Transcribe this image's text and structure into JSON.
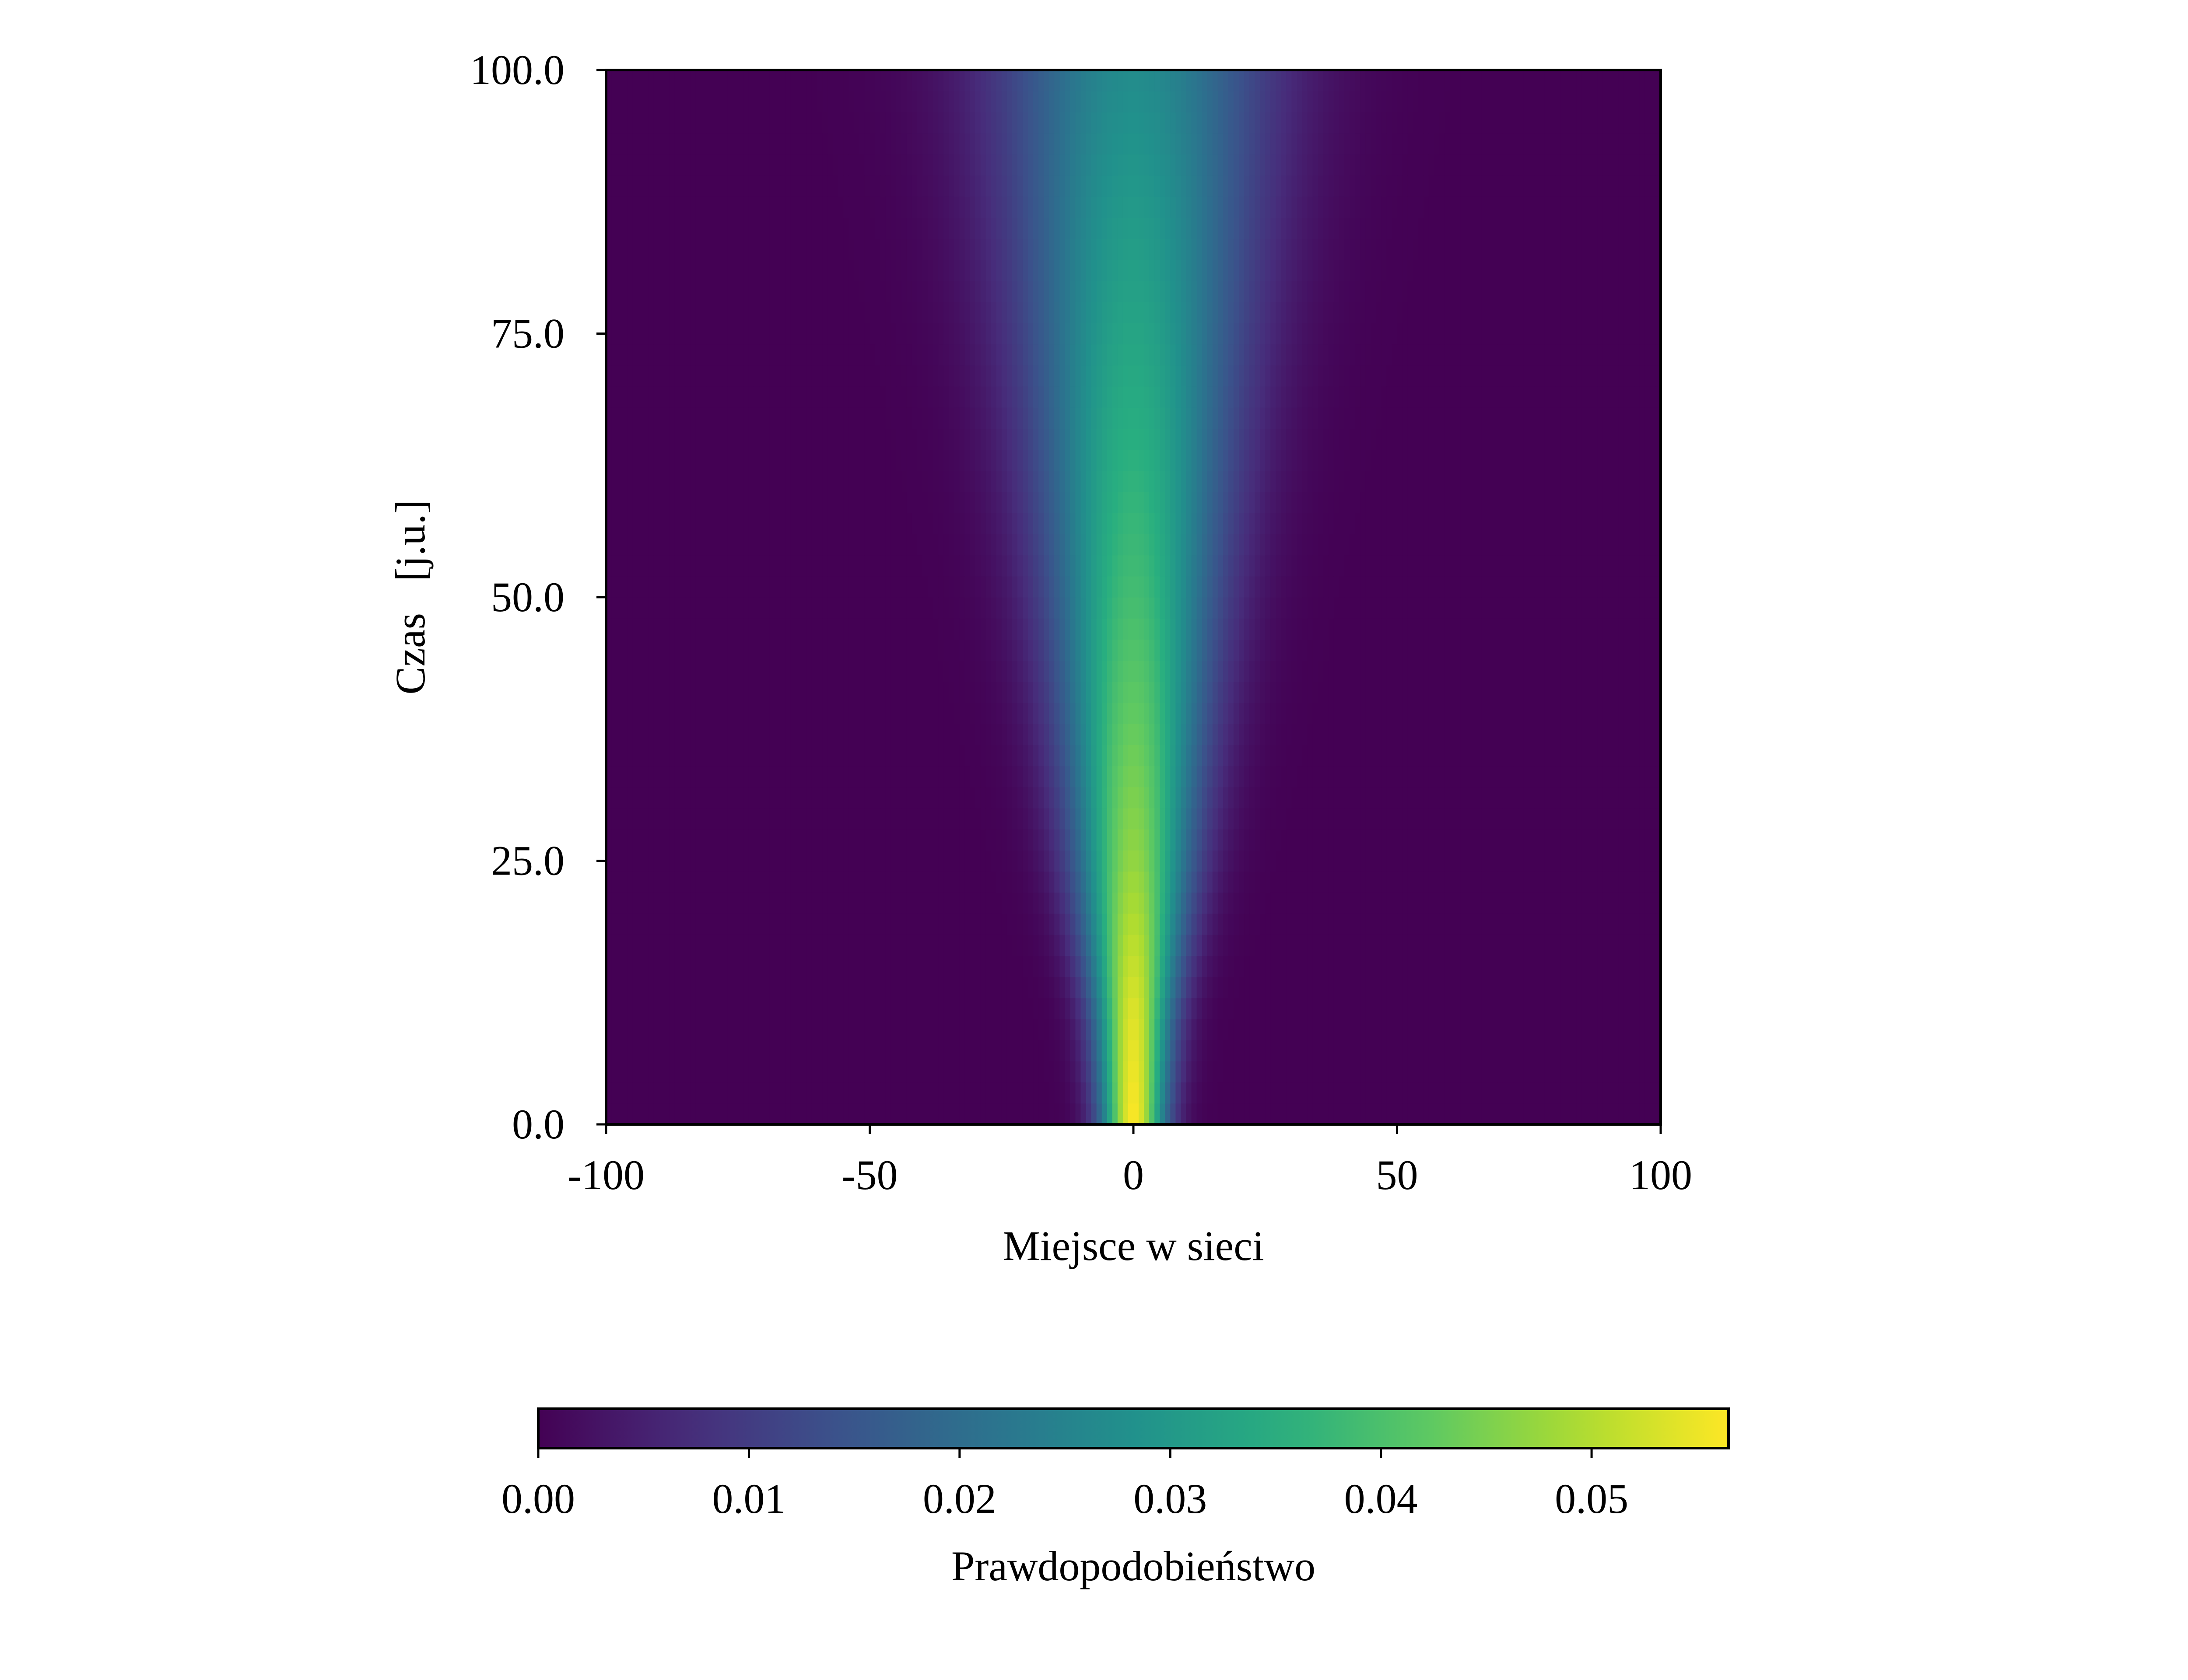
{
  "chart_data": {
    "type": "heatmap",
    "title": "",
    "xlabel": "Miejsce w sieci",
    "ylabel": "Czas   [j.u.]",
    "xlim": [
      -100,
      100
    ],
    "ylim": [
      0,
      100
    ],
    "x_ticks": [
      -100,
      -50,
      0,
      50,
      100
    ],
    "x_tick_labels": [
      "-100",
      "-50",
      "0",
      "50",
      "100"
    ],
    "y_ticks": [
      0,
      25,
      50,
      75,
      100
    ],
    "y_tick_labels": [
      "0.0",
      "25.0",
      "50.0",
      "75.0",
      "100.0"
    ],
    "colormap": "viridis",
    "colorbar": {
      "label": "Prawdopodobieństwo",
      "orientation": "horizontal",
      "placement": "bottom",
      "range": [
        0,
        0.0565
      ],
      "ticks": [
        0,
        0.01,
        0.02,
        0.03,
        0.04,
        0.05
      ],
      "tick_labels": [
        "0.00",
        "0.01",
        "0.02",
        "0.03",
        "0.04",
        "0.05"
      ]
    },
    "distribution_by_time": {
      "description": "Probability vs lattice site, centred at site 0, widening with time",
      "time": [
        0,
        10,
        25,
        50,
        75,
        100
      ],
      "peak_probability": [
        0.0565,
        0.054,
        0.047,
        0.039,
        0.033,
        0.027
      ],
      "half_width_sites": [
        5,
        6,
        9,
        13,
        17,
        21
      ]
    },
    "grid": false
  }
}
